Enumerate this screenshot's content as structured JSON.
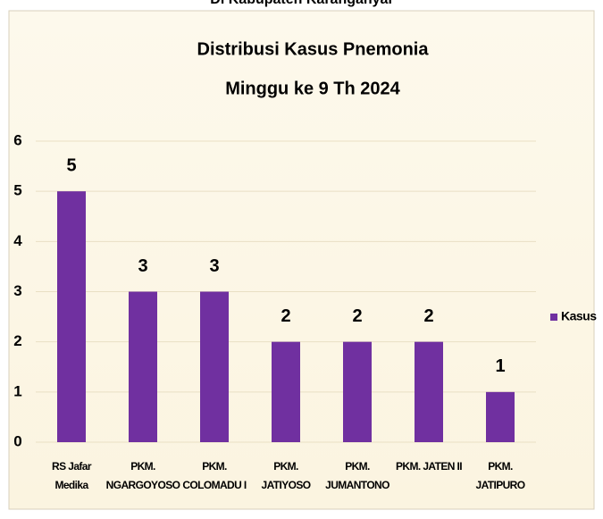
{
  "header": {
    "text": "Di Kabupaten Karanganyar"
  },
  "chart_data": {
    "type": "bar",
    "title": "Distribusi Kasus Pnemonia",
    "subtitle": "Minggu ke 9 Th 2024",
    "categories": [
      "RS Jafar\nMedika",
      "PKM.\nNGARGOYOSO",
      "PKM.\nCOLOMADU I",
      "PKM.\nJATIYOSO",
      "PKM.\nJUMANTONO",
      "PKM. JATEN II",
      "PKM.\nJATIPURO"
    ],
    "series": [
      {
        "name": "Kasus",
        "color": "#7030a0",
        "values": [
          5,
          3,
          3,
          2,
          2,
          2,
          1
        ]
      }
    ],
    "ylim": [
      0,
      6
    ],
    "yticks": [
      0,
      1,
      2,
      3,
      4,
      5,
      6
    ],
    "grid": true,
    "legend": "right",
    "data_labels": true
  }
}
